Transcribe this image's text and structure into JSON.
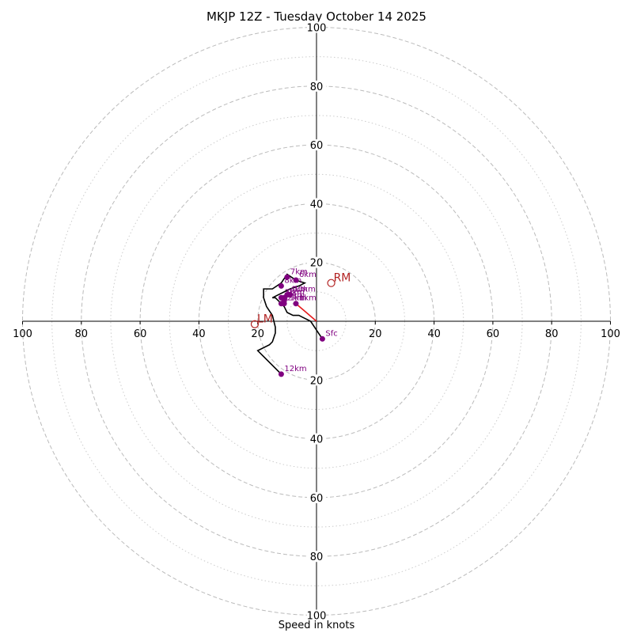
{
  "chart_data": {
    "type": "hodograph",
    "title": "MKJP 12Z - Tuesday October 14 2025",
    "xlabel": "Speed in knots",
    "xlim": [
      -100,
      100
    ],
    "ylim": [
      -100,
      100
    ],
    "rings_dashed": [
      20,
      40,
      60,
      80,
      100
    ],
    "rings_dotted": [
      10,
      30,
      50,
      70,
      90
    ],
    "ticks_x": [
      {
        "value": -100,
        "label": "100"
      },
      {
        "value": -80,
        "label": "80"
      },
      {
        "value": -60,
        "label": "60"
      },
      {
        "value": -40,
        "label": "40"
      },
      {
        "value": -20,
        "label": "20"
      },
      {
        "value": 20,
        "label": "20"
      },
      {
        "value": 40,
        "label": "40"
      },
      {
        "value": 60,
        "label": "60"
      },
      {
        "value": 80,
        "label": "80"
      },
      {
        "value": 100,
        "label": "100"
      }
    ],
    "ticks_y": [
      {
        "value": 100,
        "label": "100"
      },
      {
        "value": 80,
        "label": "80"
      },
      {
        "value": 60,
        "label": "60"
      },
      {
        "value": 40,
        "label": "40"
      },
      {
        "value": 20,
        "label": "20"
      },
      {
        "value": -20,
        "label": "20"
      },
      {
        "value": -40,
        "label": "40"
      },
      {
        "value": -60,
        "label": "60"
      },
      {
        "value": -80,
        "label": "80"
      },
      {
        "value": -100,
        "label": "100"
      }
    ],
    "trace": [
      [
        2,
        -6
      ],
      [
        0,
        -3
      ],
      [
        -2,
        0
      ],
      [
        -4,
        1
      ],
      [
        -6,
        2
      ],
      [
        -8,
        2
      ],
      [
        -10,
        3
      ],
      [
        -11,
        5
      ],
      [
        -12,
        6
      ],
      [
        -13,
        7
      ],
      [
        -14,
        8
      ],
      [
        -15,
        8
      ],
      [
        -13,
        9
      ],
      [
        -11,
        10
      ],
      [
        -9,
        11
      ],
      [
        -6,
        12
      ],
      [
        -4,
        13
      ],
      [
        -7,
        14
      ],
      [
        -10,
        16
      ],
      [
        -12,
        13
      ],
      [
        -15,
        11
      ],
      [
        -18,
        11
      ],
      [
        -18,
        8
      ],
      [
        -17,
        5
      ],
      [
        -15,
        2
      ],
      [
        -14,
        -2
      ],
      [
        -14,
        -4
      ],
      [
        -15,
        -7
      ],
      [
        -16,
        -8
      ],
      [
        -20,
        -10
      ],
      [
        -18,
        -12
      ],
      [
        -15,
        -15
      ],
      [
        -12,
        -18
      ]
    ],
    "levels": [
      {
        "label": "Sfc",
        "u": 2,
        "v": -6
      },
      {
        "label": "1km",
        "u": -7,
        "v": 6
      },
      {
        "label": "2km",
        "u": -11,
        "v": 6
      },
      {
        "label": "3km",
        "u": -12,
        "v": 8
      },
      {
        "label": "4km",
        "u": -10,
        "v": 9
      },
      {
        "label": "5km",
        "u": -11,
        "v": 7
      },
      {
        "label": "6km",
        "u": -7,
        "v": 14
      },
      {
        "label": "7km",
        "u": -10,
        "v": 15
      },
      {
        "label": "8km",
        "u": -12,
        "v": 12
      },
      {
        "label": "9km",
        "u": -11,
        "v": 8
      },
      {
        "label": "10km",
        "u": -9,
        "v": 9
      },
      {
        "label": "11km",
        "u": -12,
        "v": 6
      },
      {
        "label": "12km",
        "u": -12,
        "v": -18
      }
    ],
    "storm_motion": {
      "from": [
        0,
        0
      ],
      "to": [
        -7,
        6
      ]
    },
    "bunkers": [
      {
        "label": "RM",
        "u": 5,
        "v": 13
      },
      {
        "label": "LM",
        "u": -21,
        "v": -1
      }
    ],
    "colors": {
      "trace": "#000000",
      "level": "#800080",
      "storm_motion": "#e41a1c",
      "bunkers": "#b22222",
      "grid": "#bbbbbb"
    }
  }
}
